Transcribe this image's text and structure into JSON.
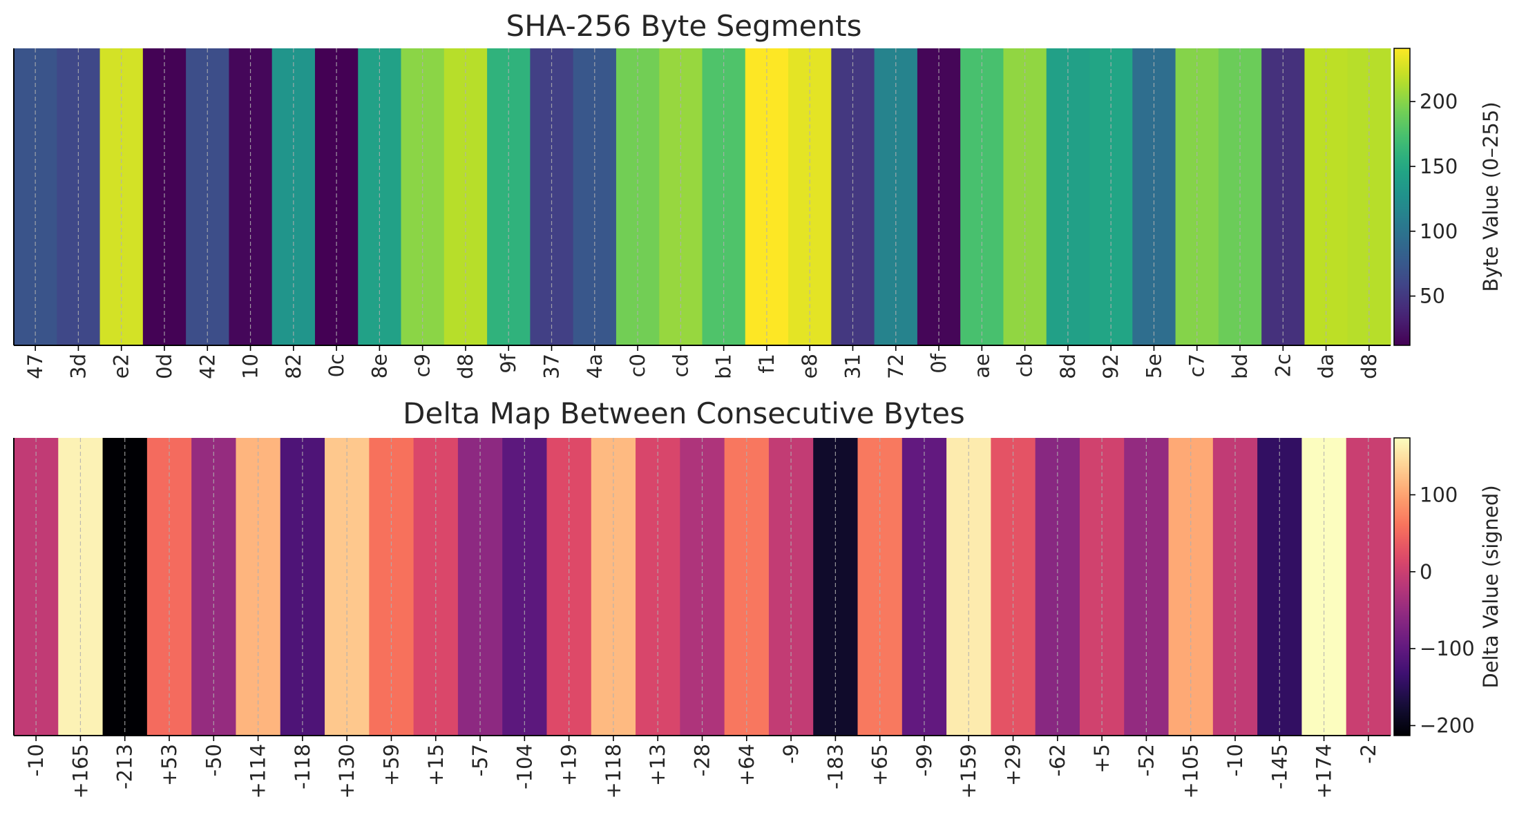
{
  "chart_data": [
    {
      "type": "heatmap",
      "title": "SHA-256 Byte Segments",
      "categories": [
        "47",
        "3d",
        "e2",
        "0d",
        "42",
        "10",
        "82",
        "0c",
        "8e",
        "c9",
        "d8",
        "9f",
        "37",
        "4a",
        "c0",
        "cd",
        "b1",
        "f1",
        "e8",
        "31",
        "72",
        "0f",
        "ae",
        "cb",
        "8d",
        "92",
        "5e",
        "c7",
        "bd",
        "2c",
        "da",
        "d8"
      ],
      "values": [
        71,
        61,
        226,
        13,
        66,
        16,
        130,
        12,
        142,
        201,
        216,
        159,
        55,
        74,
        192,
        205,
        177,
        241,
        232,
        49,
        114,
        15,
        174,
        203,
        141,
        146,
        94,
        199,
        189,
        44,
        218,
        216
      ],
      "colormap": "viridis",
      "vmin": 12,
      "vmax": 241,
      "colorbar": {
        "label": "Byte Value (0–255)",
        "ticks": [
          50,
          100,
          150,
          200
        ]
      },
      "grid": true
    },
    {
      "type": "heatmap",
      "title": "Delta Map Between Consecutive Bytes",
      "categories": [
        "-10",
        "+165",
        "-213",
        "+53",
        "-50",
        "+114",
        "-118",
        "+130",
        "+59",
        "+15",
        "-57",
        "-104",
        "+19",
        "+118",
        "+13",
        "-28",
        "+64",
        "-9",
        "-183",
        "+65",
        "-99",
        "+159",
        "+29",
        "-62",
        "+5",
        "-52",
        "+105",
        "-10",
        "-145",
        "+174",
        "-2"
      ],
      "values": [
        -10,
        165,
        -213,
        53,
        -50,
        114,
        -118,
        130,
        59,
        15,
        -57,
        -104,
        19,
        118,
        13,
        -28,
        64,
        -9,
        -183,
        65,
        -99,
        159,
        29,
        -62,
        5,
        -52,
        105,
        -10,
        -145,
        174,
        -2
      ],
      "colormap": "magma",
      "vmin": -213,
      "vmax": 174,
      "colorbar": {
        "label": "Delta Value (signed)",
        "ticks": [
          100,
          0,
          -100,
          -200
        ],
        "tick_labels": [
          "100",
          "0",
          "−100",
          "−200"
        ]
      },
      "grid": true
    }
  ]
}
